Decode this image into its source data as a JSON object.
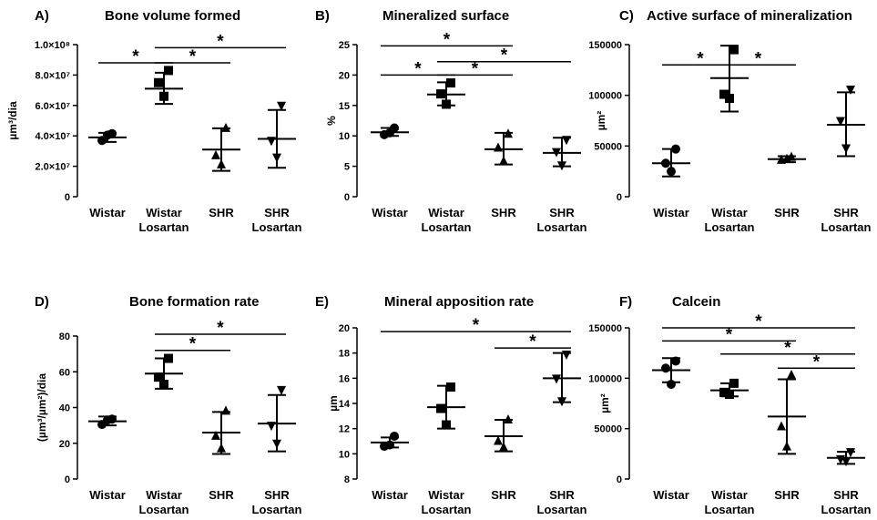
{
  "chart_data": [
    {
      "panel": "A)",
      "type": "scatter",
      "title": "Bone volume formed",
      "ylabel": "µm³/dia",
      "ylim": [
        0,
        100000000
      ],
      "yticks": [
        0,
        20000000,
        40000000,
        60000000,
        80000000,
        100000000
      ],
      "ytick_labels": [
        "0",
        "2.0×10⁷",
        "4.0×10⁷",
        "6.0×10⁷",
        "8.0×10⁷",
        "1.0×10⁸"
      ],
      "categories": [
        "Wistar",
        "Wistar\nLosartan",
        "SHR",
        "SHR\nLosartan"
      ],
      "groups": [
        {
          "marker": "circle",
          "points": [
            41500000,
            37000000,
            40500000
          ],
          "mean": 39000000,
          "sd_low": 36000000,
          "sd_high": 42000000
        },
        {
          "marker": "square",
          "points": [
            83000000,
            75000000,
            66000000
          ],
          "mean": 71000000,
          "sd_low": 61000000,
          "sd_high": 81500000
        },
        {
          "marker": "triangle-up",
          "points": [
            45000000,
            27000000,
            21000000
          ],
          "mean": 31000000,
          "sd_low": 17000000,
          "sd_high": 45000000
        },
        {
          "marker": "triangle-down",
          "points": [
            60000000,
            37000000,
            26000000
          ],
          "mean": 38000000,
          "sd_low": 19000000,
          "sd_high": 57000000
        }
      ],
      "significance": [
        {
          "from": 0,
          "to": 1,
          "y": 88000000,
          "label": "*"
        },
        {
          "from": 1,
          "to": 2,
          "y": 88000000,
          "label": "*"
        },
        {
          "from": 1,
          "to": 3,
          "y": 98000000,
          "label": "*"
        }
      ]
    },
    {
      "panel": "B)",
      "type": "scatter",
      "title": "Mineralized surface",
      "ylabel": "%",
      "ylim": [
        0,
        25
      ],
      "yticks": [
        0,
        5,
        10,
        15,
        20,
        25
      ],
      "ytick_labels": [
        "0",
        "5",
        "10",
        "15",
        "20",
        "25"
      ],
      "categories": [
        "Wistar",
        "Wistar\nLosartan",
        "SHR",
        "SHR\nLosartan"
      ],
      "groups": [
        {
          "marker": "circle",
          "points": [
            11.3,
            10.2,
            10.5
          ],
          "mean": 10.6,
          "sd_low": 10.0,
          "sd_high": 11.3
        },
        {
          "marker": "square",
          "points": [
            18.7,
            16.9,
            15.2
          ],
          "mean": 16.8,
          "sd_low": 15.0,
          "sd_high": 18.8
        },
        {
          "marker": "triangle-up",
          "points": [
            10.3,
            8.0,
            5.8
          ],
          "mean": 7.8,
          "sd_low": 5.3,
          "sd_high": 10.5
        },
        {
          "marker": "triangle-down",
          "points": [
            9.4,
            7.4,
            5.2
          ],
          "mean": 7.2,
          "sd_low": 5.0,
          "sd_high": 9.7
        }
      ],
      "significance": [
        {
          "from": 0,
          "to": 1,
          "y": 20.0,
          "label": "*"
        },
        {
          "from": 1,
          "to": 2,
          "y": 20.0,
          "label": "*"
        },
        {
          "from": 1,
          "to": 3,
          "y": 22.2,
          "label": "*"
        },
        {
          "from": 0,
          "to": 2,
          "y": 24.8,
          "label": "*"
        }
      ]
    },
    {
      "panel": "C)",
      "type": "scatter",
      "title": "Active surface of mineralization",
      "ylabel": "µm²",
      "ylim": [
        0,
        150000
      ],
      "yticks": [
        0,
        50000,
        100000,
        150000
      ],
      "ytick_labels": [
        "0",
        "50000",
        "100000",
        "150000"
      ],
      "categories": [
        "Wistar",
        "Wistar\nLosartan",
        "SHR",
        "SHR\nLosartan"
      ],
      "groups": [
        {
          "marker": "circle",
          "points": [
            47000,
            33000,
            25000
          ],
          "mean": 33000,
          "sd_low": 20000,
          "sd_high": 47000
        },
        {
          "marker": "square",
          "points": [
            145000,
            101000,
            97000
          ],
          "mean": 117000,
          "sd_low": 84000,
          "sd_high": 149000
        },
        {
          "marker": "triangle-up",
          "points": [
            39000,
            36000,
            37000
          ],
          "mean": 37000,
          "sd_low": 34000,
          "sd_high": 40000
        },
        {
          "marker": "triangle-down",
          "points": [
            106000,
            75000,
            48000
          ],
          "mean": 71000,
          "sd_low": 40000,
          "sd_high": 103000
        }
      ],
      "significance": [
        {
          "from": 0,
          "to": 1,
          "y": 130000,
          "label": "*"
        },
        {
          "from": 1,
          "to": 2,
          "y": 130000,
          "label": "*"
        }
      ]
    },
    {
      "panel": "D)",
      "type": "scatter",
      "title": "Bone formation rate",
      "ylabel": "(µm³/µm²)/dia",
      "ylim": [
        0,
        80
      ],
      "yticks": [
        0,
        20,
        40,
        60,
        80
      ],
      "ytick_labels": [
        "0",
        "20",
        "40",
        "60",
        "80"
      ],
      "categories": [
        "Wistar",
        "Wistar\nLosartan",
        "SHR",
        "SHR\nLosartan"
      ],
      "groups": [
        {
          "marker": "circle",
          "points": [
            33.5,
            30.5,
            33.0
          ],
          "mean": 32.3,
          "sd_low": 30.0,
          "sd_high": 35.0
        },
        {
          "marker": "square",
          "points": [
            67.5,
            57.0,
            53.0
          ],
          "mean": 59.0,
          "sd_low": 50.5,
          "sd_high": 67.5
        },
        {
          "marker": "triangle-up",
          "points": [
            38.0,
            24.0,
            17.0
          ],
          "mean": 26.0,
          "sd_low": 14.0,
          "sd_high": 37.5
        },
        {
          "marker": "triangle-down",
          "points": [
            50.0,
            30.0,
            20.0
          ],
          "mean": 31.0,
          "sd_low": 15.5,
          "sd_high": 47.0
        }
      ],
      "significance": [
        {
          "from": 1,
          "to": 2,
          "y": 72.0,
          "label": "*"
        },
        {
          "from": 1,
          "to": 3,
          "y": 81.0,
          "label": "*"
        }
      ]
    },
    {
      "panel": "E)",
      "type": "scatter",
      "title": "Mineral apposition rate",
      "ylabel": "µm",
      "ylim": [
        8,
        20
      ],
      "yticks": [
        8,
        10,
        12,
        14,
        16,
        18,
        20
      ],
      "ytick_labels": [
        "8",
        "10",
        "12",
        "14",
        "16",
        "18",
        "20"
      ],
      "categories": [
        "Wistar",
        "Wistar\nLosartan",
        "SHR",
        "SHR\nLosartan"
      ],
      "groups": [
        {
          "marker": "circle",
          "points": [
            11.4,
            10.6,
            10.7
          ],
          "mean": 10.9,
          "sd_low": 10.5,
          "sd_high": 11.3
        },
        {
          "marker": "square",
          "points": [
            15.3,
            13.6,
            12.3
          ],
          "mean": 13.7,
          "sd_low": 12.0,
          "sd_high": 15.4
        },
        {
          "marker": "triangle-up",
          "points": [
            12.7,
            11.0,
            10.5
          ],
          "mean": 11.4,
          "sd_low": 10.2,
          "sd_high": 12.7
        },
        {
          "marker": "triangle-down",
          "points": [
            17.9,
            16.0,
            14.2
          ],
          "mean": 16.0,
          "sd_low": 14.1,
          "sd_high": 18.0
        }
      ],
      "significance": [
        {
          "from": 2,
          "to": 3,
          "y": 18.4,
          "label": "*"
        },
        {
          "from": 0,
          "to": 3,
          "y": 19.7,
          "label": "*"
        }
      ]
    },
    {
      "panel": "F)",
      "type": "scatter",
      "title": "Calcein",
      "ylabel": "µm²",
      "ylim": [
        0,
        150000
      ],
      "yticks": [
        0,
        50000,
        100000,
        150000
      ],
      "ytick_labels": [
        "0",
        "50000",
        "100000",
        "150000"
      ],
      "categories": [
        "Wistar",
        "Wistar\nLosartan",
        "SHR",
        "SHR\nLosartan"
      ],
      "groups": [
        {
          "marker": "circle",
          "points": [
            117000,
            110000,
            94000
          ],
          "mean": 108000,
          "sd_low": 96000,
          "sd_high": 120000
        },
        {
          "marker": "square",
          "points": [
            95000,
            86000,
            84000
          ],
          "mean": 88000,
          "sd_low": 82000,
          "sd_high": 95000
        },
        {
          "marker": "triangle-up",
          "points": [
            103000,
            52000,
            32000
          ],
          "mean": 62000,
          "sd_low": 25000,
          "sd_high": 99000
        },
        {
          "marker": "triangle-down",
          "points": [
            27000,
            20000,
            18000
          ],
          "mean": 21000,
          "sd_low": 15000,
          "sd_high": 27000
        }
      ],
      "significance": [
        {
          "from": 2,
          "to": 3,
          "y": 110000,
          "label": "*"
        },
        {
          "from": 1,
          "to": 3,
          "y": 124000,
          "label": "*"
        },
        {
          "from": 0,
          "to": 2,
          "y": 137000,
          "label": "*"
        },
        {
          "from": 0,
          "to": 3,
          "y": 150000,
          "label": "*"
        }
      ]
    }
  ]
}
